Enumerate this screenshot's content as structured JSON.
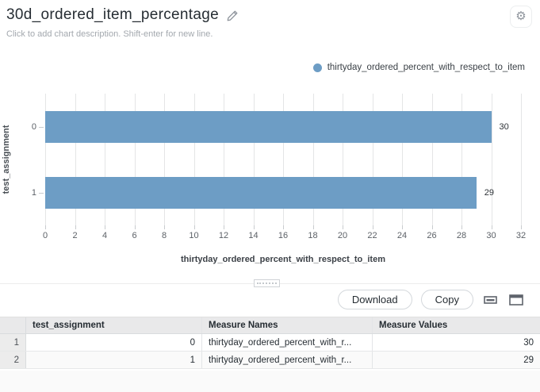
{
  "header": {
    "title": "30d_ordered_item_percentage",
    "description_placeholder": "Click to add chart description. Shift-enter for new line.",
    "gear_glyph": "⚙"
  },
  "legend": {
    "items": [
      {
        "label": "thirtyday_ordered_percent_with_respect_to_item",
        "color": "#6d9dc5"
      }
    ]
  },
  "chart_data": {
    "type": "bar",
    "orientation": "horizontal",
    "title": "",
    "categories": [
      "0",
      "1"
    ],
    "series": [
      {
        "name": "thirtyday_ordered_percent_with_respect_to_item",
        "values": [
          30,
          29
        ],
        "color": "#6d9dc5"
      }
    ],
    "value_labels": [
      "30",
      "29"
    ],
    "xlabel": "thirtyday_ordered_percent_with_respect_to_item",
    "ylabel": "test_assignment",
    "xlim": [
      0,
      32
    ],
    "x_ticks": [
      0,
      2,
      4,
      6,
      8,
      10,
      12,
      14,
      16,
      18,
      20,
      22,
      24,
      26,
      28,
      30,
      32
    ],
    "grid": true,
    "legend_position": "top-right"
  },
  "toolbar": {
    "download_label": "Download",
    "copy_label": "Copy"
  },
  "table": {
    "columns": [
      "test_assignment",
      "Measure Names",
      "Measure Values"
    ],
    "rows": [
      {
        "index": "1",
        "test_assignment": "0",
        "measure_name": "thirtyday_ordered_percent_with_r...",
        "measure_value": "30"
      },
      {
        "index": "2",
        "test_assignment": "1",
        "measure_name": "thirtyday_ordered_percent_with_r...",
        "measure_value": "29"
      }
    ]
  }
}
